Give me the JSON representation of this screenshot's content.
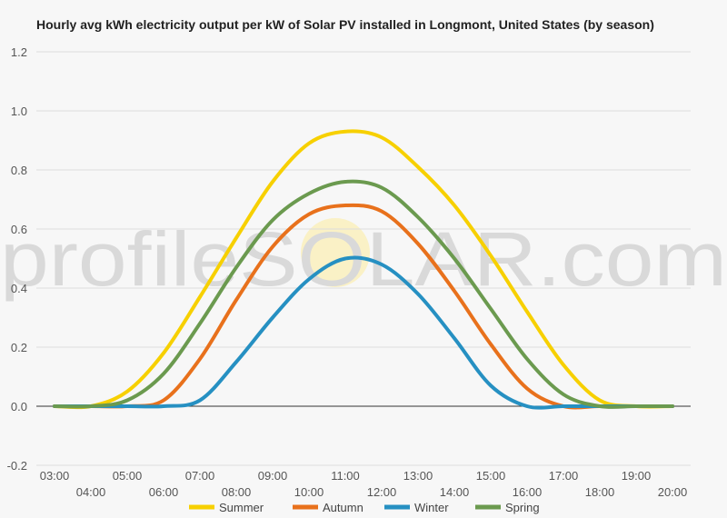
{
  "chart_data": {
    "type": "line",
    "title": "Hourly avg kWh electricity output per kW of Solar PV installed in Longmont, United States (by season)",
    "watermark": "profileSOLAR.com",
    "xlabel": "",
    "ylabel": "",
    "ylim": [
      -0.2,
      1.2
    ],
    "yticks": [
      -0.2,
      0.0,
      0.2,
      0.4,
      0.6,
      0.8,
      1.0,
      1.2
    ],
    "ytick_labels": [
      "-0.2",
      "0.0",
      "0.2",
      "0.4",
      "0.6",
      "0.8",
      "1.0",
      "1.2"
    ],
    "xticks": [
      3,
      4,
      5,
      6,
      7,
      8,
      9,
      10,
      11,
      12,
      13,
      14,
      15,
      16,
      17,
      18,
      19,
      20
    ],
    "xtick_labels": [
      "03:00",
      "04:00",
      "05:00",
      "06:00",
      "07:00",
      "08:00",
      "09:00",
      "10:00",
      "11:00",
      "12:00",
      "13:00",
      "14:00",
      "15:00",
      "16:00",
      "17:00",
      "18:00",
      "19:00",
      "20:00"
    ],
    "grid": true,
    "legend_position": "bottom",
    "x": [
      3,
      4,
      5,
      6,
      7,
      8,
      9,
      10,
      11,
      12,
      13,
      14,
      15,
      16,
      17,
      18,
      19,
      20
    ],
    "series": [
      {
        "name": "Summer",
        "color": "#f7d000",
        "values": [
          0.0,
          0.0,
          0.05,
          0.18,
          0.37,
          0.57,
          0.76,
          0.89,
          0.93,
          0.91,
          0.81,
          0.68,
          0.51,
          0.32,
          0.14,
          0.02,
          0.0,
          0.0
        ]
      },
      {
        "name": "Autumn",
        "color": "#e8711c",
        "values": [
          0.0,
          0.0,
          0.0,
          0.02,
          0.16,
          0.36,
          0.54,
          0.65,
          0.68,
          0.66,
          0.55,
          0.39,
          0.21,
          0.06,
          0.0,
          0.0,
          0.0,
          0.0
        ]
      },
      {
        "name": "Winter",
        "color": "#2690c2",
        "values": [
          0.0,
          0.0,
          0.0,
          0.0,
          0.02,
          0.15,
          0.3,
          0.43,
          0.5,
          0.48,
          0.38,
          0.23,
          0.07,
          0.0,
          0.0,
          0.0,
          0.0,
          0.0
        ]
      },
      {
        "name": "Spring",
        "color": "#6b9a4f",
        "values": [
          0.0,
          0.0,
          0.02,
          0.11,
          0.28,
          0.47,
          0.63,
          0.72,
          0.76,
          0.74,
          0.64,
          0.5,
          0.33,
          0.16,
          0.04,
          0.0,
          0.0,
          0.0
        ]
      }
    ]
  }
}
